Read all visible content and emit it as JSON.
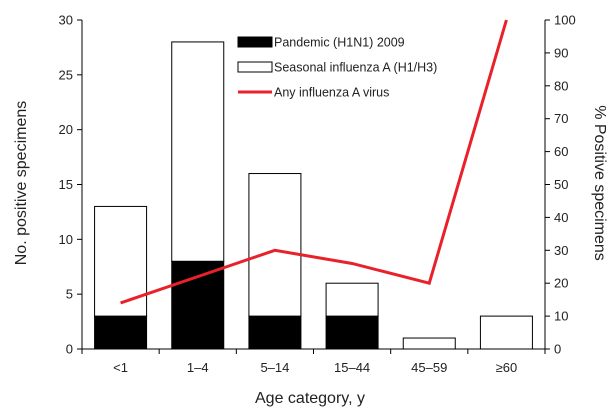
{
  "chart_data": {
    "type": "bar",
    "stacked": true,
    "categories": [
      "<1",
      "1–4",
      "5–14",
      "15–44",
      "45–59",
      "≥60"
    ],
    "series": [
      {
        "name": "Pandemic (H1N1) 2009",
        "type": "bar",
        "axis": "left",
        "color": "#000000",
        "values": [
          3,
          8,
          3,
          3,
          0,
          0
        ]
      },
      {
        "name": "Seasonal influenza A (H1/H3)",
        "type": "bar",
        "axis": "left",
        "color": "#ffffff",
        "values": [
          10,
          20,
          13,
          3,
          1,
          3
        ]
      },
      {
        "name": "Any influenza A virus",
        "type": "line",
        "axis": "right",
        "color": "#e8212a",
        "values": [
          14,
          22,
          30,
          26,
          20,
          100
        ]
      }
    ],
    "xlabel": "Age category, y",
    "ylabel": "No. positive specimens",
    "y2label": "% Positive specimens",
    "ylim": [
      0,
      30
    ],
    "y2lim": [
      0,
      100
    ],
    "yticks": [
      "0",
      "5",
      "10",
      "15",
      "20",
      "25",
      "30"
    ],
    "y2ticks": [
      "0",
      "10",
      "20",
      "30",
      "40",
      "50",
      "60",
      "70",
      "80",
      "90",
      "100"
    ],
    "legend": "top-center",
    "grid": false
  }
}
